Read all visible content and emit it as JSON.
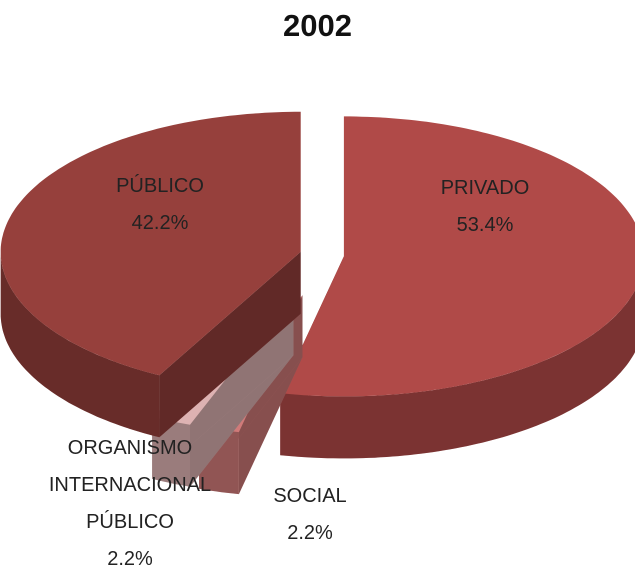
{
  "chart_data": {
    "type": "pie",
    "title": "2002",
    "categories": [
      "PRIVADO",
      "SOCIAL",
      "ORGANISMO INTERNACIONAL PÚBLICO",
      "PÚBLICO"
    ],
    "values": [
      53.4,
      2.2,
      2.2,
      42.2
    ],
    "value_labels": [
      "53.4%",
      "2.2%",
      "2.2%",
      "42.2%"
    ],
    "colors": [
      "#b04a48",
      "#d07a79",
      "#ddb2b2",
      "#96403c"
    ]
  }
}
